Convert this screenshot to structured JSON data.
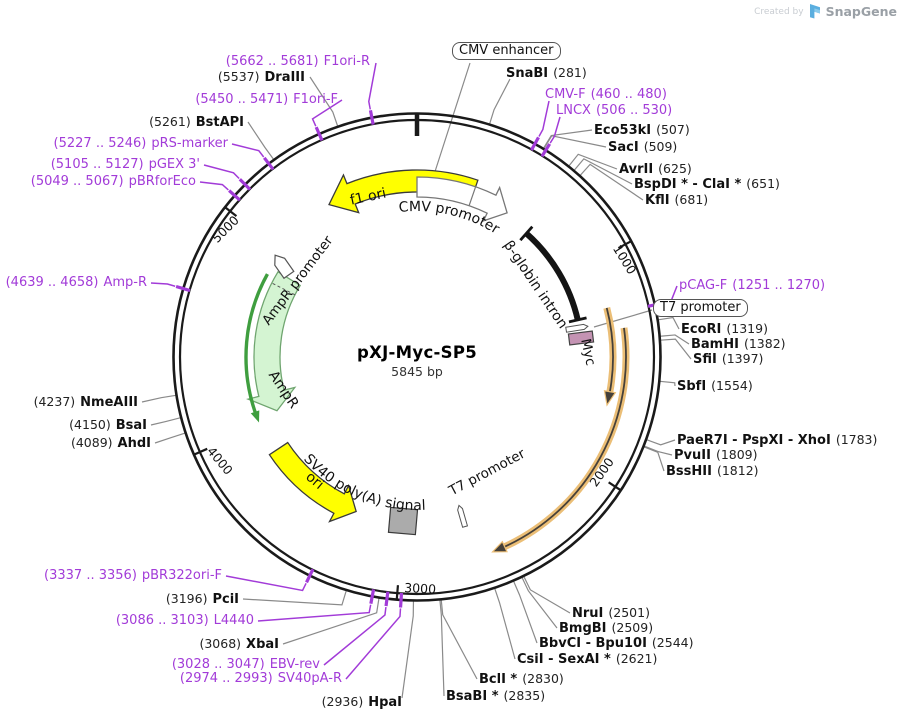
{
  "watermark": {
    "created_by": "Created by",
    "brand": "SnapGene"
  },
  "plasmid": {
    "name": "pXJ-Myc-SP5",
    "size": "5845 bp"
  },
  "axis_ticks": [
    "1000",
    "2000",
    "3000",
    "4000",
    "5000"
  ],
  "boxed_labels": {
    "cmv_enhancer": "CMV enhancer",
    "t7_promoter": "T7 promoter"
  },
  "feature_labels": {
    "f1_ori": "f1 ori",
    "cmv_promoter": "CMV promoter",
    "beta_globin_intron": "β-globin intron",
    "myc": "Myc",
    "t7_promoter": "T7 promoter",
    "sv40_polya": "SV40 poly(A) signal",
    "ori": "ori",
    "ampr_promoter": "AmpR promoter",
    "ampr": "AmpR"
  },
  "enzymes": {
    "snabi": {
      "name": "SnaBI",
      "pos": "(281)"
    },
    "eco53ki": {
      "name": "Eco53kI",
      "pos": "(507)"
    },
    "saci": {
      "name": "SacI",
      "pos": "(509)"
    },
    "avrii": {
      "name": "AvrII",
      "pos": "(625)"
    },
    "bspdi_clai": {
      "name": "BspDI * - ClaI *",
      "pos": "(651)"
    },
    "kfli": {
      "name": "KflI",
      "pos": "(681)"
    },
    "ecori": {
      "name": "EcoRI",
      "pos": "(1319)"
    },
    "bamhi": {
      "name": "BamHI",
      "pos": "(1382)"
    },
    "sfii": {
      "name": "SfiI",
      "pos": "(1397)"
    },
    "sbfi": {
      "name": "SbfI",
      "pos": "(1554)"
    },
    "paer7i": {
      "name": "PaeR7I - PspXI - XhoI",
      "pos": "(1783)"
    },
    "pvuii": {
      "name": "PvuII",
      "pos": "(1809)"
    },
    "bsshii": {
      "name": "BssHII",
      "pos": "(1812)"
    },
    "nrui": {
      "name": "NruI",
      "pos": "(2501)"
    },
    "bmgbi": {
      "name": "BmgBI",
      "pos": "(2509)"
    },
    "bbvci": {
      "name": "BbvCI - Bpu10I",
      "pos": "(2544)"
    },
    "csii": {
      "name": "CsiI - SexAI *",
      "pos": "(2621)"
    },
    "bcli": {
      "name": "BclI *",
      "pos": "(2830)"
    },
    "bsabi": {
      "name": "BsaBI *",
      "pos": "(2835)"
    },
    "hpai": {
      "name": "HpaI",
      "pos": "(2936)"
    },
    "xbai": {
      "name": "XbaI",
      "pos": "(3068)"
    },
    "pcii": {
      "name": "PciI",
      "pos": "(3196)"
    },
    "ahdi": {
      "name": "AhdI",
      "pos": "(4089)"
    },
    "bsai": {
      "name": "BsaI",
      "pos": "(4150)"
    },
    "nmeaiii": {
      "name": "NmeAIII",
      "pos": "(4237)"
    },
    "bstapi": {
      "name": "BstAPI",
      "pos": "(5261)"
    },
    "draiii": {
      "name": "DraIII",
      "pos": "(5537)"
    }
  },
  "primers": {
    "f1ori_r": {
      "name": "F1ori-R",
      "range": "(5662 .. 5681)"
    },
    "f1ori_f": {
      "name": "F1ori-F",
      "range": "(5450 .. 5471)"
    },
    "prs_marker": {
      "name": "pRS-marker",
      "range": "(5227 .. 5246)"
    },
    "pgex3": {
      "name": "pGEX 3'",
      "range": "(5105 .. 5127)"
    },
    "pbrforeco": {
      "name": "pBRforEco",
      "range": "(5049 .. 5067)"
    },
    "amp_r": {
      "name": "Amp-R",
      "range": "(4639 .. 4658)"
    },
    "pbr322ori_f": {
      "name": "pBR322ori-F",
      "range": "(3337 .. 3356)"
    },
    "l4440": {
      "name": "L4440",
      "range": "(3086 .. 3103)"
    },
    "ebv_rev": {
      "name": "EBV-rev",
      "range": "(3028 .. 3047)"
    },
    "sv40pa_r": {
      "name": "SV40pA-R",
      "range": "(2974 .. 2993)"
    },
    "cmv_f": {
      "name": "CMV-F",
      "range": "(460 .. 480)"
    },
    "lncx": {
      "name": "LNCX",
      "range": "(506 .. 530)"
    },
    "pcag_f": {
      "name": "pCAG-F",
      "range": "(1251 .. 1270)"
    }
  }
}
